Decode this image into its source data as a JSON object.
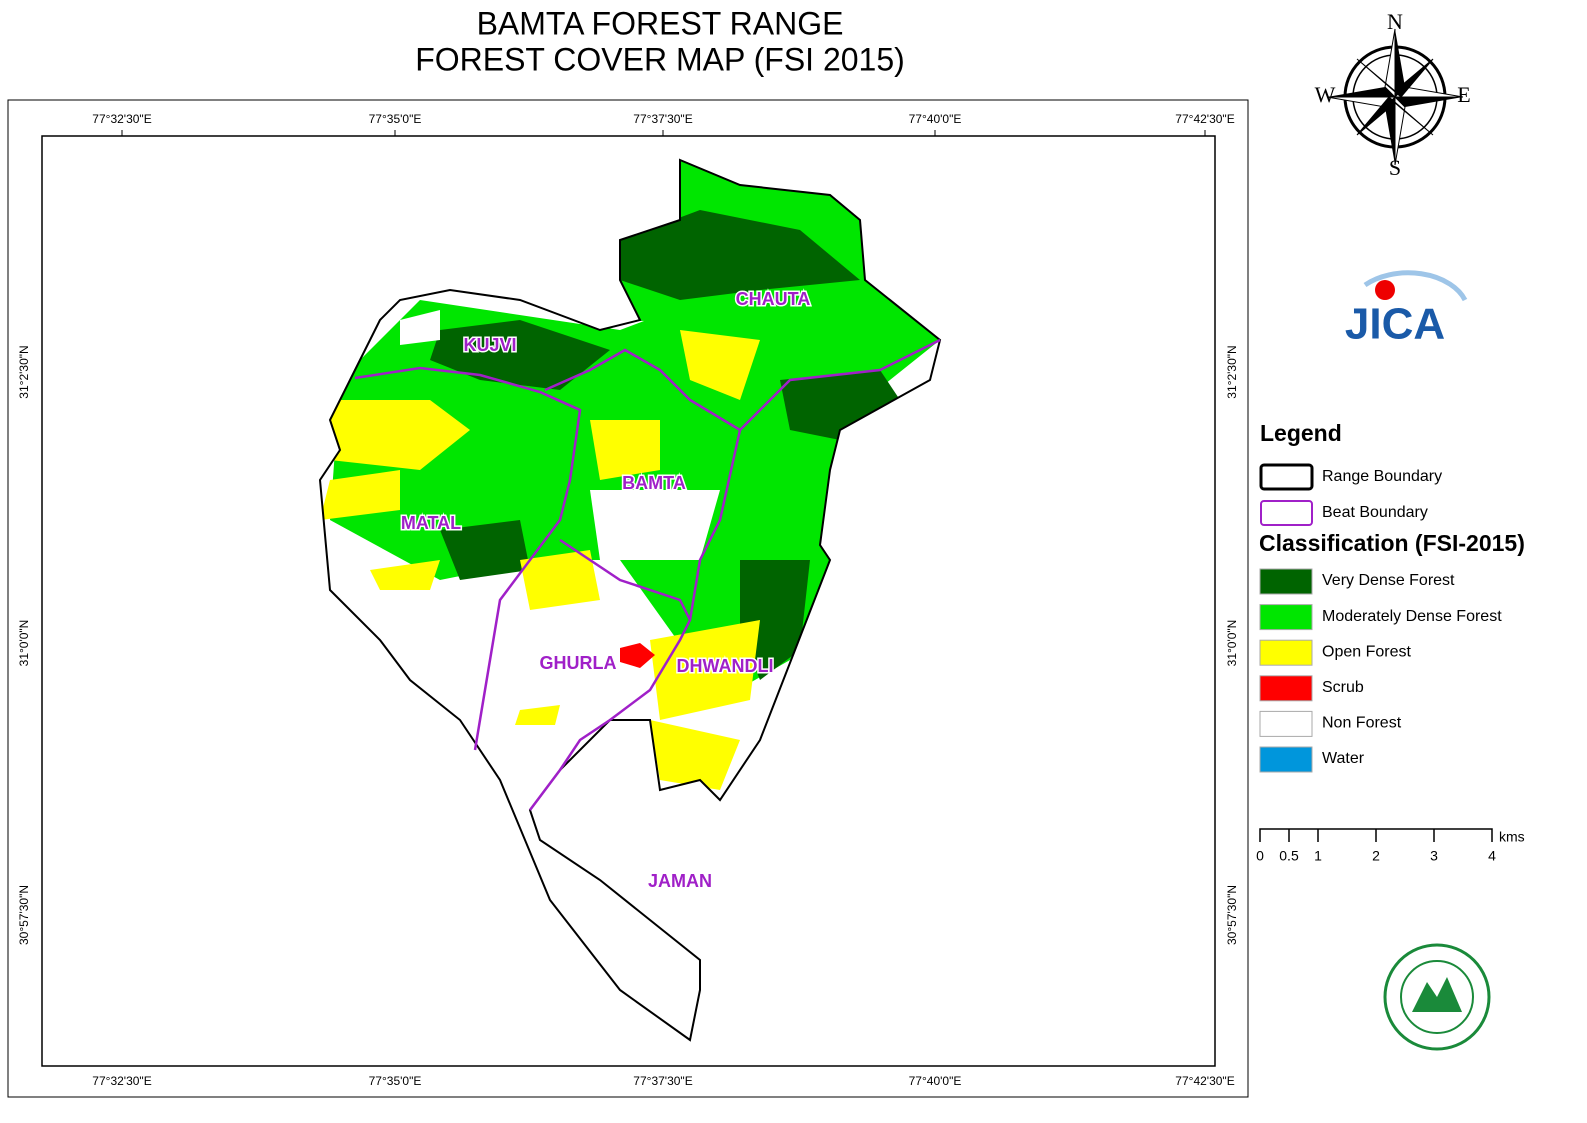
{
  "title": [
    "BAMTA FOREST RANGE",
    "FOREST COVER MAP (FSI 2015)"
  ],
  "compass": {
    "n": "N",
    "e": "E",
    "s": "S",
    "w": "W"
  },
  "longitudes": [
    "77°32'30\"E",
    "77°35'0\"E",
    "77°37'30\"E",
    "77°40'0\"E",
    "77°42'30\"E"
  ],
  "latitudes": [
    "31°2'30\"N",
    "31°0'0\"N",
    "30°57'30\"N"
  ],
  "beats": [
    "KUJVI",
    "CHAUTA",
    "BAMTA",
    "MATAL",
    "GHURLA",
    "DHWANDLI",
    "JAMAN"
  ],
  "logo": "JICA",
  "legend": {
    "title": "Legend",
    "boundaries": [
      {
        "label": "Range Boundary",
        "color": "#000000"
      },
      {
        "label": "Beat Boundary",
        "color": "#a020c8"
      }
    ],
    "classification_title": "Classification (FSI-2015)",
    "classes": [
      {
        "label": "Very Dense Forest",
        "color": "#006400"
      },
      {
        "label": "Moderately Dense Forest",
        "color": "#00e600"
      },
      {
        "label": "Open Forest",
        "color": "#ffff00"
      },
      {
        "label": "Scrub",
        "color": "#ff0000"
      },
      {
        "label": "Non Forest",
        "color": "#ffffff"
      },
      {
        "label": "Water",
        "color": "#0096dc"
      }
    ]
  },
  "scale": {
    "labels": [
      "0",
      "0.5",
      "1",
      "2",
      "3",
      "4"
    ],
    "unit": "kms"
  }
}
